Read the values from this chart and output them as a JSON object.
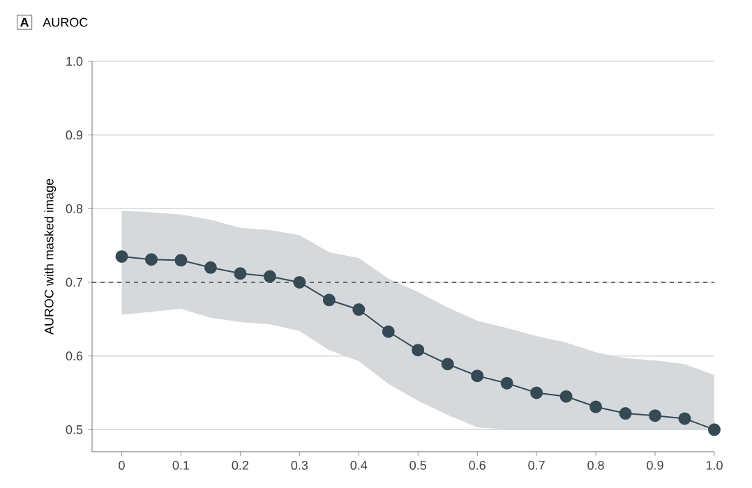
{
  "chart_data": {
    "type": "line",
    "title": "AUROC",
    "subtitle": "A",
    "ylabel": "AUROC with masked image",
    "x": [
      0,
      0.05,
      0.1,
      0.15,
      0.2,
      0.25,
      0.3,
      0.35,
      0.4,
      0.45,
      0.5,
      0.55,
      0.6,
      0.65,
      0.7,
      0.75,
      0.8,
      0.85,
      0.9,
      0.95,
      1.0
    ],
    "series": [
      {
        "color": "#354a55",
        "values": [
          0.735,
          0.731,
          0.73,
          0.72,
          0.712,
          0.708,
          0.7,
          0.676,
          0.663,
          0.633,
          0.608,
          0.589,
          0.573,
          0.563,
          0.55,
          0.545,
          0.531,
          0.522,
          0.519,
          0.515,
          0.5
        ],
        "upper": [
          0.797,
          0.795,
          0.792,
          0.785,
          0.774,
          0.771,
          0.764,
          0.741,
          0.733,
          0.705,
          0.687,
          0.666,
          0.648,
          0.638,
          0.627,
          0.618,
          0.605,
          0.597,
          0.594,
          0.589,
          0.574
        ],
        "lower": [
          0.656,
          0.66,
          0.664,
          0.652,
          0.646,
          0.643,
          0.634,
          0.608,
          0.593,
          0.562,
          0.539,
          0.52,
          0.503,
          0.5,
          0.5,
          0.5,
          0.5,
          0.5,
          0.5,
          0.5,
          0.5
        ]
      }
    ],
    "xlim": [
      -0.05,
      1.0
    ],
    "ylim": [
      0.47,
      1.0
    ],
    "xticks": [
      0,
      0.1,
      0.2,
      0.3,
      0.4,
      0.5,
      0.6,
      0.7,
      0.8,
      0.9,
      {
        "value": 1.0,
        "label": "1.0"
      }
    ],
    "yticks": [
      {
        "value": 0.5,
        "label": "0.5"
      },
      {
        "value": 0.6,
        "label": "0.6"
      },
      {
        "value": 0.7,
        "label": "0.7"
      },
      {
        "value": 0.8,
        "label": "0.8"
      },
      {
        "value": 0.9,
        "label": "0.9"
      },
      {
        "value": 1.0,
        "label": "1.0"
      }
    ],
    "grid": "y",
    "marker": "circle",
    "line_style": "solid",
    "ref_lines": [
      {
        "axis": "y",
        "value": 0.7,
        "line_style": "dashed",
        "color": "#444444"
      }
    ]
  }
}
